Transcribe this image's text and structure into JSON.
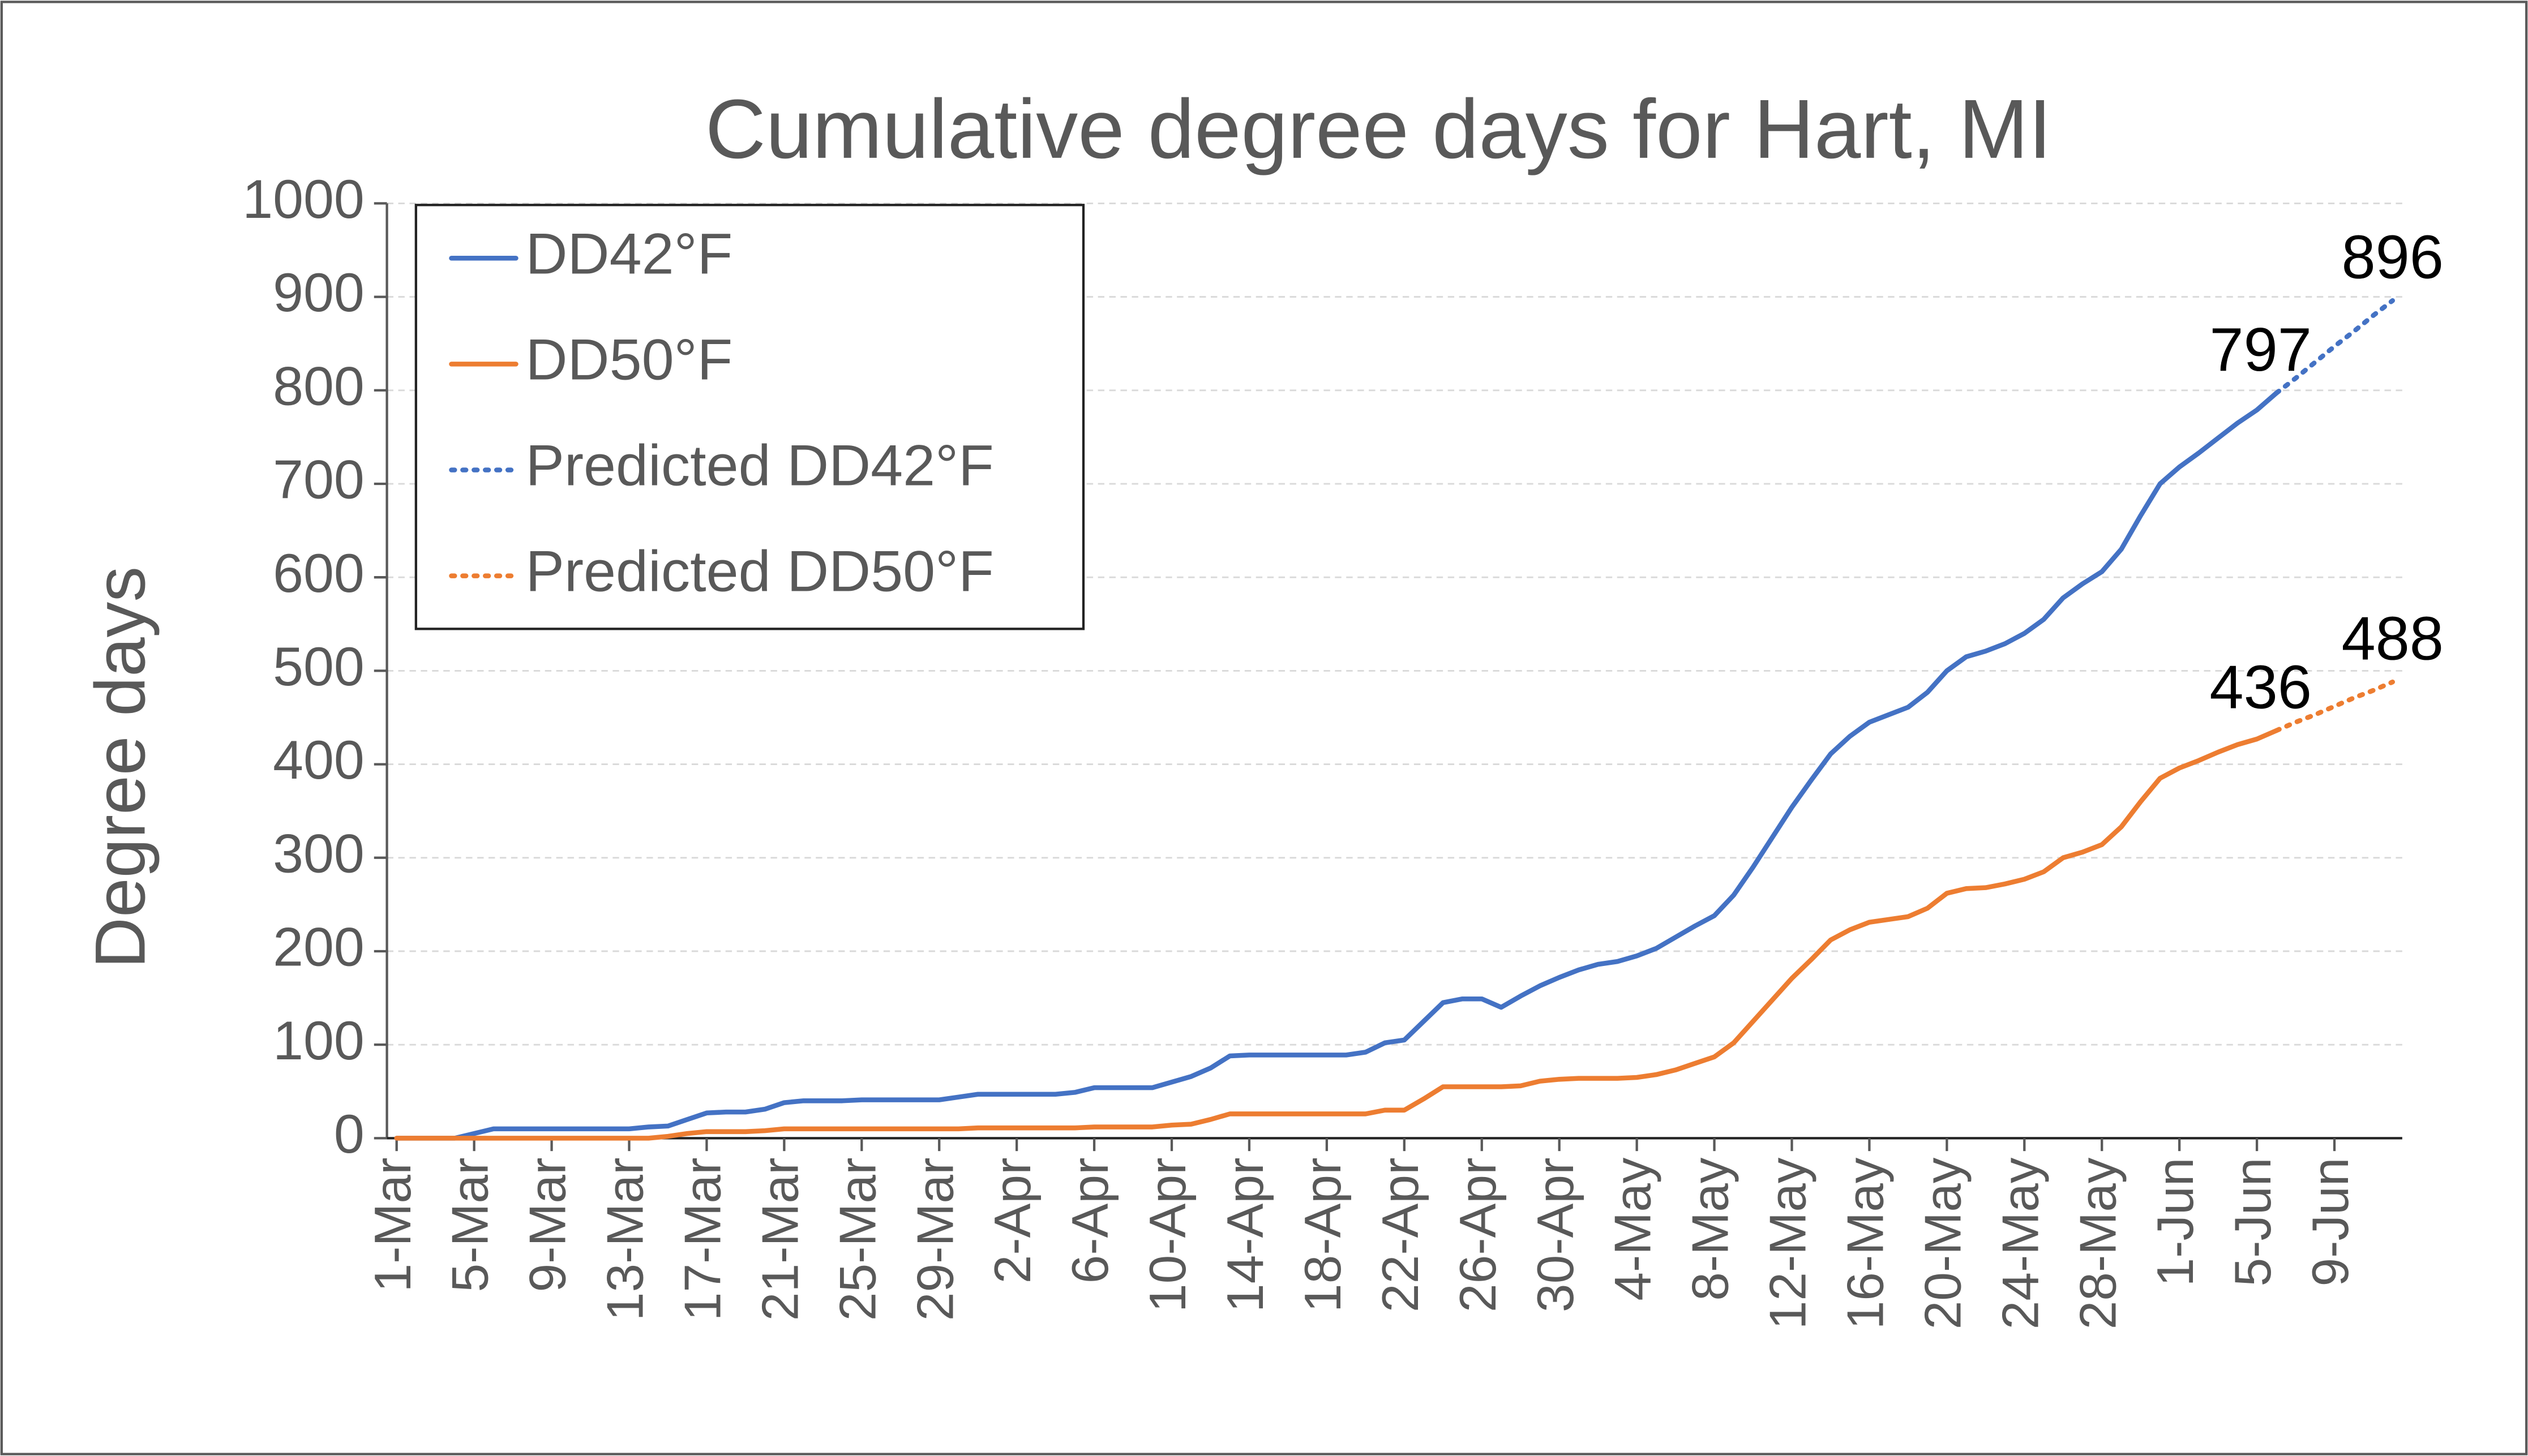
{
  "chart_data": {
    "type": "line",
    "title": "Cumulative degree days for Hart, MI",
    "y_label": "Degree days",
    "categories": [
      "1-Mar",
      null,
      null,
      null,
      "5-Mar",
      null,
      null,
      null,
      "9-Mar",
      null,
      null,
      null,
      "13-Mar",
      null,
      null,
      null,
      "17-Mar",
      null,
      null,
      null,
      "21-Mar",
      null,
      null,
      null,
      "25-Mar",
      null,
      null,
      null,
      "29-Mar",
      null,
      null,
      null,
      "2-Apr",
      null,
      null,
      null,
      "6-Apr",
      null,
      null,
      null,
      "10-Apr",
      null,
      null,
      null,
      "14-Apr",
      null,
      null,
      null,
      "18-Apr",
      null,
      null,
      null,
      "22-Apr",
      null,
      null,
      null,
      "26-Apr",
      null,
      null,
      null,
      "30-Apr",
      null,
      null,
      null,
      "4-May",
      null,
      null,
      null,
      "8-May",
      null,
      null,
      null,
      "12-May",
      null,
      null,
      null,
      "16-May",
      null,
      null,
      null,
      "20-May",
      null,
      null,
      null,
      "24-May",
      null,
      null,
      null,
      "28-May",
      null,
      null,
      null,
      "1-Jun",
      null,
      null,
      null,
      "5-Jun",
      null,
      null,
      null,
      "9-Jun",
      null,
      null,
      null
    ],
    "series": [
      {
        "name": "DD42°F",
        "color": "#4472c4",
        "dash": false,
        "data_labels": "last",
        "values": [
          0,
          0,
          0,
          0,
          5,
          10,
          10,
          10,
          10,
          10,
          10,
          10,
          10,
          12,
          13,
          20,
          27,
          28,
          28,
          31,
          38,
          40,
          40,
          40,
          41,
          41,
          41,
          41,
          41,
          44,
          47,
          47,
          47,
          47,
          47,
          49,
          54,
          54,
          54,
          54,
          60,
          66,
          75,
          88,
          89,
          89,
          89,
          89,
          89,
          89,
          92,
          102,
          105,
          125,
          145,
          149,
          149,
          140,
          152,
          163,
          172,
          180,
          186,
          189,
          195,
          203,
          215,
          227,
          238,
          260,
          290,
          322,
          354,
          383,
          411,
          430,
          445,
          453,
          461,
          477,
          500,
          515,
          521,
          529,
          540,
          555,
          578,
          593,
          606,
          630,
          666,
          700,
          718,
          733,
          749,
          765,
          779,
          797,
          null,
          null,
          null,
          null,
          null,
          null
        ]
      },
      {
        "name": "DD50°F",
        "color": "#ed7d31",
        "dash": false,
        "data_labels": "last",
        "values": [
          0,
          0,
          0,
          0,
          0,
          0,
          0,
          0,
          0,
          0,
          0,
          0,
          0,
          0,
          2,
          5,
          7,
          7,
          7,
          8,
          10,
          10,
          10,
          10,
          10,
          10,
          10,
          10,
          10,
          10,
          11,
          11,
          11,
          11,
          11,
          11,
          12,
          12,
          12,
          12,
          14,
          15,
          20,
          26,
          26,
          26,
          26,
          26,
          26,
          26,
          26,
          30,
          30,
          42,
          55,
          55,
          55,
          55,
          56,
          61,
          63,
          64,
          64,
          64,
          65,
          68,
          73,
          80,
          87,
          102,
          125,
          148,
          171,
          191,
          212,
          223,
          231,
          234,
          237,
          246,
          262,
          267,
          268,
          272,
          277,
          285,
          300,
          306,
          314,
          333,
          360,
          385,
          396,
          404,
          413,
          421,
          427,
          436,
          null,
          null,
          null,
          null,
          null,
          null
        ]
      },
      {
        "name": "Predicted DD42°F",
        "color": "#4472c4",
        "dash": true,
        "data_labels": "last",
        "values": [
          null,
          null,
          null,
          null,
          null,
          null,
          null,
          null,
          null,
          null,
          null,
          null,
          null,
          null,
          null,
          null,
          null,
          null,
          null,
          null,
          null,
          null,
          null,
          null,
          null,
          null,
          null,
          null,
          null,
          null,
          null,
          null,
          null,
          null,
          null,
          null,
          null,
          null,
          null,
          null,
          null,
          null,
          null,
          null,
          null,
          null,
          null,
          null,
          null,
          null,
          null,
          null,
          null,
          null,
          null,
          null,
          null,
          null,
          null,
          null,
          null,
          null,
          null,
          null,
          null,
          null,
          null,
          null,
          null,
          null,
          null,
          null,
          null,
          null,
          null,
          null,
          null,
          null,
          null,
          null,
          null,
          null,
          null,
          null,
          null,
          null,
          null,
          null,
          null,
          null,
          null,
          null,
          null,
          null,
          null,
          null,
          null,
          797,
          813,
          830,
          847,
          863,
          880,
          896
        ]
      },
      {
        "name": "Predicted DD50°F",
        "color": "#ed7d31",
        "dash": true,
        "data_labels": "last",
        "values": [
          null,
          null,
          null,
          null,
          null,
          null,
          null,
          null,
          null,
          null,
          null,
          null,
          null,
          null,
          null,
          null,
          null,
          null,
          null,
          null,
          null,
          null,
          null,
          null,
          null,
          null,
          null,
          null,
          null,
          null,
          null,
          null,
          null,
          null,
          null,
          null,
          null,
          null,
          null,
          null,
          null,
          null,
          null,
          null,
          null,
          null,
          null,
          null,
          null,
          null,
          null,
          null,
          null,
          null,
          null,
          null,
          null,
          null,
          null,
          null,
          null,
          null,
          null,
          null,
          null,
          null,
          null,
          null,
          null,
          null,
          null,
          null,
          null,
          null,
          null,
          null,
          null,
          null,
          null,
          null,
          null,
          null,
          null,
          null,
          null,
          null,
          null,
          null,
          null,
          null,
          null,
          null,
          null,
          null,
          null,
          null,
          null,
          436,
          445,
          453,
          462,
          471,
          479,
          488
        ]
      }
    ],
    "ylim": [
      0,
      1000
    ],
    "yticks": [
      0,
      100,
      200,
      300,
      400,
      500,
      600,
      700,
      800,
      900,
      1000
    ],
    "grid": true,
    "legend": "upper left"
  }
}
